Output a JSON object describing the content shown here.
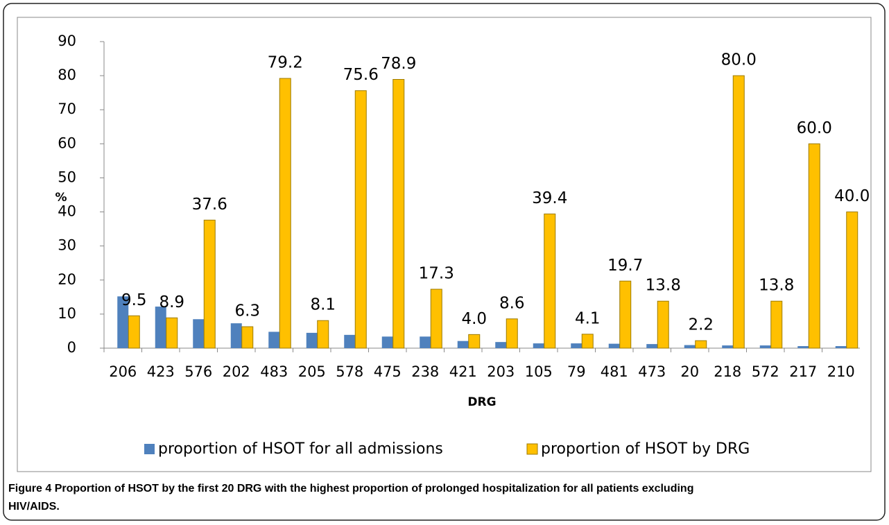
{
  "chart_data": {
    "type": "bar",
    "x_label": "DRG",
    "y_label": "%",
    "categories": [
      "206",
      "423",
      "576",
      "202",
      "483",
      "205",
      "578",
      "475",
      "238",
      "421",
      "203",
      "105",
      "79",
      "481",
      "473",
      "20",
      "218",
      "572",
      "217",
      "210"
    ],
    "series": [
      {
        "name": "proportion of HSOT for all admissions",
        "color": "#4f81bd",
        "values": [
          15.2,
          12.2,
          8.5,
          7.3,
          4.8,
          4.5,
          3.9,
          3.4,
          3.4,
          2.1,
          1.8,
          1.4,
          1.4,
          1.3,
          1.2,
          0.9,
          0.8,
          0.8,
          0.6,
          0.6
        ]
      },
      {
        "name": "proportion of  HSOT by DRG",
        "color": "#ffc000",
        "values": [
          9.5,
          8.9,
          37.6,
          6.3,
          79.2,
          8.1,
          75.6,
          78.9,
          17.3,
          4.0,
          8.6,
          39.4,
          4.1,
          19.7,
          13.8,
          2.2,
          80.0,
          13.8,
          60.0,
          40.0
        ],
        "value_labels": [
          "9.5",
          "8.9",
          "37.6",
          "6.3",
          "79.2",
          "8.1",
          "75.6",
          "78.9",
          "17.3",
          "4.0",
          "8.6",
          "39.4",
          "4.1",
          "19.7",
          "13.8",
          "2.2",
          "80.0",
          "13.8",
          "60.0",
          "40.0"
        ]
      }
    ],
    "ylim": [
      0,
      90
    ],
    "yticks": [
      0,
      10,
      20,
      30,
      40,
      50,
      60,
      70,
      80,
      90
    ],
    "grid": false,
    "legend": "bottom"
  },
  "caption": {
    "label": "Figure 4",
    "text": "Proportion of HSOT by the first 20 DRG with the highest proportion of prolonged hospitalization for all patients excluding",
    "text2": "HIV/AIDS."
  }
}
